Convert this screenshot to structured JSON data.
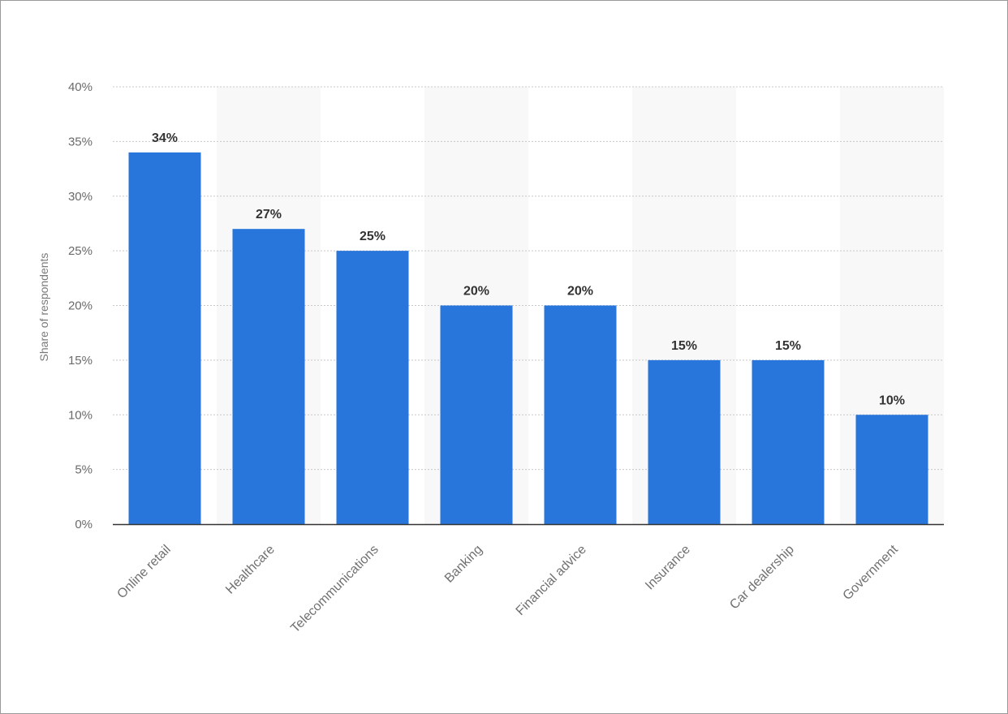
{
  "chart_data": {
    "type": "bar",
    "title": "",
    "xlabel": "",
    "ylabel": "Share of respondents",
    "categories": [
      "Online retail",
      "Healthcare",
      "Telecommunications",
      "Banking",
      "Financial advice",
      "Insurance",
      "Car dealership",
      "Government"
    ],
    "values": [
      34,
      27,
      25,
      20,
      20,
      15,
      15,
      10
    ],
    "data_labels": [
      "34%",
      "27%",
      "25%",
      "20%",
      "20%",
      "15%",
      "15%",
      "10%"
    ],
    "ylim": [
      0,
      40
    ],
    "yticks": [
      0,
      5,
      10,
      15,
      20,
      25,
      30,
      35,
      40
    ],
    "ytick_labels": [
      "0%",
      "5%",
      "10%",
      "15%",
      "20%",
      "25%",
      "30%",
      "35%",
      "40%"
    ],
    "grid": true,
    "legend": "none",
    "colors": {
      "bar": "#2876dc",
      "band": "#f8f8f8",
      "grid": "#c8c8c8",
      "axis": "#333333"
    }
  }
}
